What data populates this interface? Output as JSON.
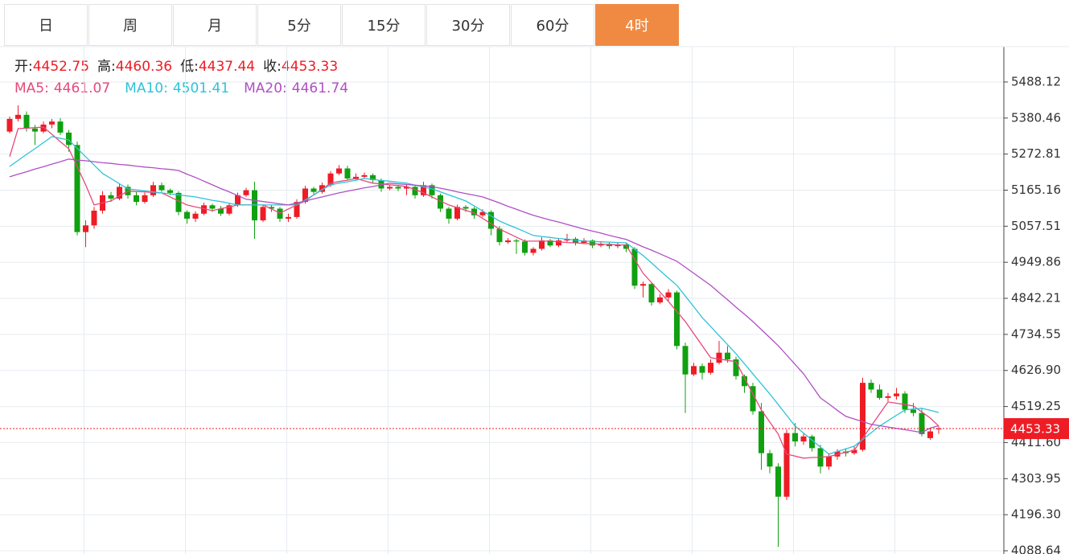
{
  "tabs": {
    "items": [
      "日",
      "周",
      "月",
      "5分",
      "15分",
      "30分",
      "60分",
      "4时"
    ],
    "active": 7
  },
  "chart_data": {
    "type": "candlestick",
    "info_labels": [
      "开:",
      "高:",
      "低:",
      "收:"
    ],
    "up_color": "#ee1c25",
    "down_color": "#10a010",
    "candles": [
      [
        5340,
        5385,
        5335,
        5378
      ],
      [
        5378,
        5418,
        5370,
        5390
      ],
      [
        5390,
        5400,
        5340,
        5349
      ],
      [
        5349,
        5360,
        5300,
        5340
      ],
      [
        5340,
        5370,
        5335,
        5361
      ],
      [
        5361,
        5378,
        5350,
        5370
      ],
      [
        5370,
        5380,
        5330,
        5337
      ],
      [
        5337,
        5345,
        5280,
        5300
      ],
      [
        5300,
        5310,
        5030,
        5040
      ],
      [
        5040,
        5075,
        4995,
        5060
      ],
      [
        5060,
        5115,
        5050,
        5104
      ],
      [
        5104,
        5162,
        5095,
        5150
      ],
      [
        5150,
        5160,
        5130,
        5140
      ],
      [
        5140,
        5185,
        5135,
        5175
      ],
      [
        5175,
        5182,
        5140,
        5150
      ],
      [
        5150,
        5160,
        5120,
        5130
      ],
      [
        5130,
        5158,
        5125,
        5150
      ],
      [
        5150,
        5190,
        5145,
        5180
      ],
      [
        5180,
        5188,
        5160,
        5165
      ],
      [
        5165,
        5170,
        5150,
        5157
      ],
      [
        5157,
        5162,
        5090,
        5100
      ],
      [
        5100,
        5105,
        5065,
        5080
      ],
      [
        5080,
        5102,
        5070,
        5095
      ],
      [
        5095,
        5128,
        5090,
        5120
      ],
      [
        5120,
        5125,
        5100,
        5110
      ],
      [
        5110,
        5118,
        5088,
        5095
      ],
      [
        5095,
        5126,
        5090,
        5120
      ],
      [
        5120,
        5158,
        5115,
        5150
      ],
      [
        5150,
        5172,
        5145,
        5165
      ],
      [
        5165,
        5190,
        5020,
        5075
      ],
      [
        5075,
        5122,
        5070,
        5115
      ],
      [
        5115,
        5120,
        5100,
        5110
      ],
      [
        5110,
        5115,
        5070,
        5080
      ],
      [
        5080,
        5095,
        5070,
        5085
      ],
      [
        5085,
        5138,
        5080,
        5130
      ],
      [
        5130,
        5178,
        5125,
        5170
      ],
      [
        5170,
        5175,
        5150,
        5160
      ],
      [
        5160,
        5188,
        5155,
        5180
      ],
      [
        5180,
        5222,
        5175,
        5215
      ],
      [
        5215,
        5240,
        5210,
        5230
      ],
      [
        5230,
        5238,
        5195,
        5200
      ],
      [
        5200,
        5215,
        5195,
        5205
      ],
      [
        5205,
        5218,
        5200,
        5210
      ],
      [
        5210,
        5215,
        5188,
        5195
      ],
      [
        5195,
        5200,
        5160,
        5170
      ],
      [
        5170,
        5182,
        5165,
        5175
      ],
      [
        5175,
        5180,
        5162,
        5170
      ],
      [
        5170,
        5182,
        5150,
        5175
      ],
      [
        5175,
        5180,
        5140,
        5150
      ],
      [
        5150,
        5190,
        5145,
        5180
      ],
      [
        5180,
        5185,
        5140,
        5150
      ],
      [
        5150,
        5155,
        5100,
        5110
      ],
      [
        5110,
        5115,
        5065,
        5080
      ],
      [
        5080,
        5122,
        5075,
        5115
      ],
      [
        5115,
        5120,
        5100,
        5110
      ],
      [
        5110,
        5115,
        5080,
        5090
      ],
      [
        5090,
        5108,
        5085,
        5100
      ],
      [
        5100,
        5105,
        5030,
        5050
      ],
      [
        5050,
        5058,
        5000,
        5010
      ],
      [
        5010,
        5022,
        5005,
        5015
      ],
      [
        5015,
        5020,
        4975,
        5012
      ],
      [
        5012,
        5018,
        4970,
        4978
      ],
      [
        4978,
        4995,
        4970,
        4990
      ],
      [
        4990,
        5025,
        4985,
        5015
      ],
      [
        5015,
        5020,
        4995,
        5000
      ],
      [
        5000,
        5022,
        4995,
        5015
      ],
      [
        5015,
        5035,
        5010,
        5020
      ],
      [
        5020,
        5025,
        5000,
        5008
      ],
      [
        5008,
        5022,
        5005,
        5015
      ],
      [
        5015,
        5018,
        4992,
        5000
      ],
      [
        5000,
        5012,
        4995,
        5005
      ],
      [
        5005,
        5010,
        4990,
        4998
      ],
      [
        4998,
        5010,
        4992,
        5003
      ],
      [
        5003,
        5008,
        4980,
        4990
      ],
      [
        4990,
        4995,
        4870,
        4880
      ],
      [
        4880,
        4892,
        4845,
        4885
      ],
      [
        4885,
        4890,
        4820,
        4830
      ],
      [
        4830,
        4855,
        4825,
        4845
      ],
      [
        4845,
        4870,
        4835,
        4860
      ],
      [
        4860,
        4865,
        4690,
        4700
      ],
      [
        4700,
        4710,
        4500,
        4615
      ],
      [
        4615,
        4650,
        4610,
        4640
      ],
      [
        4640,
        4648,
        4600,
        4620
      ],
      [
        4620,
        4660,
        4615,
        4650
      ],
      [
        4650,
        4715,
        4645,
        4680
      ],
      [
        4680,
        4700,
        4650,
        4660
      ],
      [
        4660,
        4668,
        4600,
        4610
      ],
      [
        4610,
        4615,
        4560,
        4580
      ],
      [
        4580,
        4590,
        4495,
        4505
      ],
      [
        4505,
        4530,
        4330,
        4380
      ],
      [
        4380,
        4390,
        4320,
        4340
      ],
      [
        4340,
        4350,
        4100,
        4250
      ],
      [
        4250,
        4450,
        4240,
        4440
      ],
      [
        4440,
        4470,
        4400,
        4415
      ],
      [
        4415,
        4440,
        4405,
        4430
      ],
      [
        4430,
        4435,
        4385,
        4395
      ],
      [
        4395,
        4405,
        4320,
        4340
      ],
      [
        4340,
        4380,
        4330,
        4370
      ],
      [
        4370,
        4392,
        4360,
        4385
      ],
      [
        4385,
        4395,
        4370,
        4380
      ],
      [
        4380,
        4400,
        4375,
        4390
      ],
      [
        4390,
        4605,
        4385,
        4590
      ],
      [
        4590,
        4600,
        4560,
        4570
      ],
      [
        4570,
        4585,
        4540,
        4545
      ],
      [
        4545,
        4560,
        4535,
        4550
      ],
      [
        4550,
        4575,
        4540,
        4558
      ],
      [
        4558,
        4565,
        4500,
        4510
      ],
      [
        4510,
        4530,
        4490,
        4500
      ],
      [
        4500,
        4515,
        4430,
        4437
      ],
      [
        4425,
        4455,
        4420,
        4445
      ],
      [
        4452.75,
        4460.36,
        4437.44,
        4453.33
      ]
    ],
    "series": [
      {
        "name": "MA5:",
        "color": "#e8487a",
        "values": [
          5265,
          5349,
          5350,
          5352,
          5353,
          5332,
          5310,
          5289,
          5235,
          5181,
          5121,
          5127,
          5133,
          5148,
          5162,
          5161,
          5160,
          5158,
          5157,
          5145,
          5133,
          5121,
          5115,
          5110,
          5104,
          5110,
          5115,
          5121,
          5121,
          5121,
          5121,
          5109,
          5097,
          5109,
          5121,
          5133,
          5151,
          5168,
          5186,
          5191,
          5195,
          5200,
          5193,
          5186,
          5184,
          5181,
          5179,
          5176,
          5167,
          5157,
          5145,
          5133,
          5121,
          5113,
          5105,
          5097,
          5081,
          5065,
          5049,
          5037,
          5025,
          5013,
          5013,
          5013,
          5013,
          5011,
          5009,
          5008,
          5006,
          5005,
          5004,
          5003,
          5002,
          5001,
          4959,
          4917,
          4889,
          4861,
          4833,
          4803,
          4773,
          4737,
          4701,
          4665,
          4661,
          4657,
          4653,
          4605,
          4557,
          4509,
          4473,
          4437,
          4377,
          4371,
          4365,
          4367,
          4368,
          4370,
          4376,
          4383,
          4389,
          4425,
          4461,
          4497,
          4533,
          4529,
          4525,
          4521,
          4503,
          4485,
          4461.07
        ]
      },
      {
        "name": "MA10:",
        "color": "#2ec3d8",
        "values": [
          5236,
          5254,
          5272,
          5289,
          5307,
          5325,
          5320,
          5315,
          5290,
          5265,
          5240,
          5215,
          5200,
          5184,
          5169,
          5166,
          5163,
          5160,
          5157,
          5154,
          5151,
          5148,
          5145,
          5140,
          5135,
          5131,
          5126,
          5121,
          5121,
          5121,
          5121,
          5121,
          5121,
          5121,
          5121,
          5136,
          5151,
          5166,
          5181,
          5186,
          5190,
          5195,
          5200,
          5197,
          5194,
          5192,
          5189,
          5186,
          5180,
          5175,
          5169,
          5160,
          5151,
          5142,
          5133,
          5118,
          5103,
          5088,
          5073,
          5062,
          5052,
          5041,
          5030,
          5027,
          5024,
          5021,
          5019,
          5016,
          5013,
          5012,
          5011,
          5010,
          5009,
          5008,
          4989,
          4970,
          4948,
          4925,
          4903,
          4881,
          4849,
          4817,
          4785,
          4758,
          4731,
          4704,
          4677,
          4647,
          4617,
          4587,
          4557,
          4525,
          4493,
          4461,
          4440,
          4419,
          4398,
          4377,
          4385,
          4393,
          4401,
          4421,
          4441,
          4461,
          4477,
          4493,
          4509,
          4512,
          4514,
          4508,
          4501.41
        ]
      },
      {
        "name": "MA20:",
        "color": "#b04fc4",
        "values": [
          5205,
          5213,
          5220,
          5228,
          5235,
          5243,
          5250,
          5258,
          5255,
          5253,
          5250,
          5247,
          5245,
          5242,
          5240,
          5237,
          5234,
          5232,
          5229,
          5227,
          5224,
          5213,
          5203,
          5192,
          5181,
          5170,
          5160,
          5149,
          5138,
          5135,
          5131,
          5128,
          5124,
          5121,
          5127,
          5133,
          5139,
          5145,
          5151,
          5157,
          5162,
          5167,
          5172,
          5176,
          5181,
          5186,
          5184,
          5182,
          5180,
          5178,
          5176,
          5171,
          5166,
          5160,
          5155,
          5150,
          5145,
          5136,
          5127,
          5117,
          5108,
          5099,
          5090,
          5083,
          5076,
          5070,
          5063,
          5056,
          5049,
          5043,
          5037,
          5030,
          5024,
          5018,
          5007,
          4996,
          4986,
          4975,
          4964,
          4953,
          4935,
          4917,
          4899,
          4881,
          4859,
          4838,
          4816,
          4795,
          4773,
          4749,
          4725,
          4701,
          4673,
          4645,
          4617,
          4581,
          4545,
          4527,
          4508,
          4490,
          4482,
          4474,
          4466,
          4462,
          4458,
          4454,
          4450,
          4446,
          4442,
          4455,
          4461.74
        ]
      }
    ],
    "ylim": [
      4079,
      5593.6
    ],
    "yticks": [
      {
        "value": 5488.12,
        "label": "5488.12"
      },
      {
        "value": 5380.46,
        "label": "5380.46"
      },
      {
        "value": 5272.81,
        "label": "5272.81"
      },
      {
        "value": 5165.16,
        "label": "5165.16"
      },
      {
        "value": 5057.51,
        "label": "5057.51"
      },
      {
        "value": 4949.86,
        "label": "4949.86"
      },
      {
        "value": 4842.21,
        "label": "4842.21"
      },
      {
        "value": 4734.55,
        "label": "4734.55"
      },
      {
        "value": 4626.9,
        "label": "4626.90"
      },
      {
        "value": 4519.25,
        "label": "4519.25"
      },
      {
        "value": 4411.6,
        "label": "4411.60"
      },
      {
        "value": 4303.95,
        "label": "4303.95"
      },
      {
        "value": 4196.3,
        "label": "4196.30"
      },
      {
        "value": 4088.64,
        "label": "4088.64"
      }
    ],
    "grid": true
  }
}
